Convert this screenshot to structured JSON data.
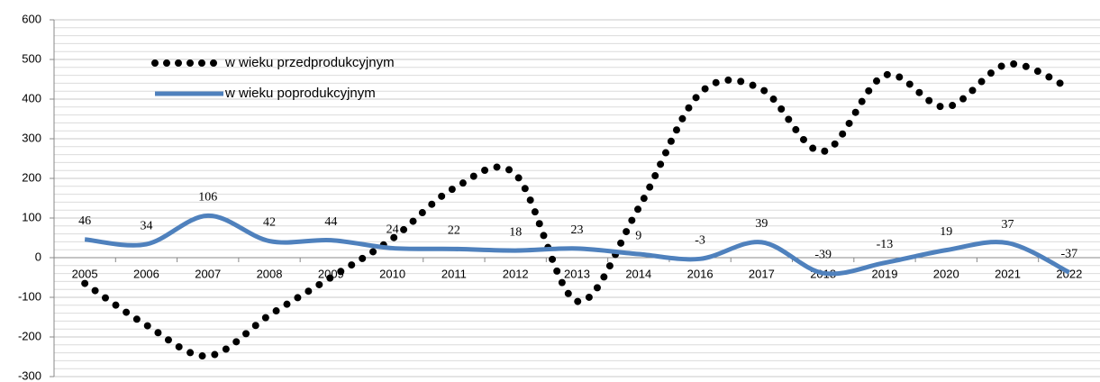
{
  "chart_data": {
    "type": "line",
    "categories": [
      "2005",
      "2006",
      "2007",
      "2008",
      "2009",
      "2010",
      "2011",
      "2012",
      "2013",
      "2014",
      "2016",
      "2017",
      "2018",
      "2019",
      "2020",
      "2021",
      "2022"
    ],
    "series": [
      {
        "name": "w wieku przedprodukcyjnym",
        "color": "#000000",
        "style": "dotted",
        "values": [
          -65,
          -170,
          -248,
          -145,
          -50,
          48,
          175,
          210,
          -110,
          125,
          415,
          425,
          268,
          460,
          380,
          488,
          428
        ]
      },
      {
        "name": "w wieku poprodukcyjnym",
        "color": "#4f81bd",
        "style": "solid",
        "data_labels": true,
        "values": [
          46,
          34,
          106,
          42,
          44,
          24,
          22,
          18,
          23,
          9,
          -3,
          39,
          -39,
          -13,
          19,
          37,
          -37
        ]
      }
    ],
    "ylim": [
      -300,
      600
    ],
    "yticks": [
      -300,
      -200,
      -100,
      0,
      100,
      200,
      300,
      400,
      500,
      600
    ],
    "minor_yticks": [
      -280,
      -260,
      -240,
      -220,
      -180,
      -160,
      -140,
      -120,
      -80,
      -60,
      -40,
      -20,
      20,
      40,
      60,
      80,
      120,
      140,
      160,
      180,
      220,
      240,
      260,
      280,
      320,
      340,
      360,
      380,
      420,
      440,
      460,
      480,
      520,
      540,
      560,
      580
    ],
    "grid": true,
    "legend": "upper left",
    "smooth": true
  }
}
